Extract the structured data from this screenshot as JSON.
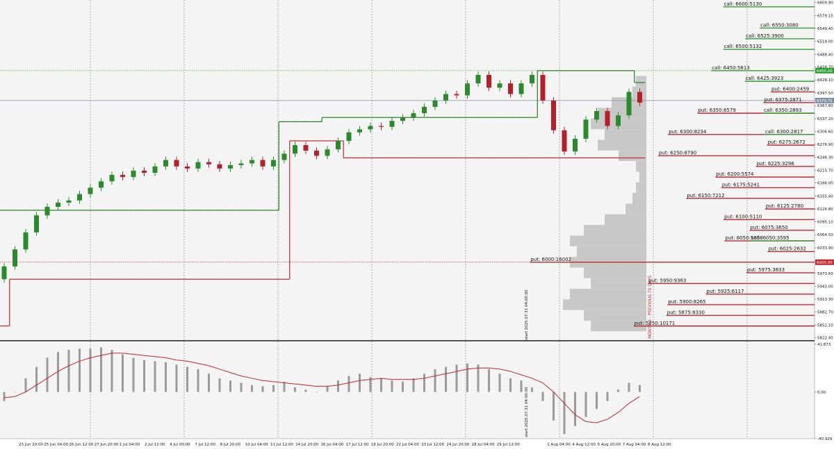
{
  "chart_data": [
    {
      "type": "candlestick",
      "xlabels": [
        "23 Jun 20:00",
        "25 Jun 04:00",
        "26 Jun 12:00",
        "27 Jun 20:00",
        "1 Jul 04:00",
        "2 Jul 12:00",
        "4 Jul 00:00",
        "7 Jul 12:00",
        "8 Jul 20:00",
        "10 Jul 04:00",
        "11 Jul 12:00",
        "14 Jul 20:00",
        "16 Jul 04:00",
        "17 Jul 12:00",
        "18 Jul 20:00",
        "22 Jul 04:00",
        "23 Jul 12:00",
        "24 Jul 20:00",
        "28 Jul 04:00",
        "29 Jul 12:00",
        null,
        "1 Aug 04:00",
        "4 Aug 12:00",
        "5 Aug 20:00",
        "7 Aug 04:00",
        "8 Aug 12:00"
      ],
      "candles": {
        "open": [
          5960,
          5990,
          6030,
          6070,
          6110,
          6130,
          6140,
          6145,
          6160,
          6175,
          6190,
          6205,
          6200,
          6215,
          6210,
          6225,
          6240,
          6225,
          6220,
          6235,
          6230,
          6220,
          6228,
          6232,
          6240,
          6225,
          6240,
          6255,
          6275,
          6262,
          6250,
          6265,
          6285,
          6305,
          6312,
          6320,
          6318,
          6332,
          6340,
          6350,
          6365,
          6380,
          6395,
          6392,
          6420,
          6440,
          6410,
          6420,
          6395,
          6420,
          6440,
          6380,
          6310,
          6260,
          6290,
          6335,
          6355,
          6320,
          6345,
          6400
        ],
        "high": [
          5998,
          6038,
          6078,
          6118,
          6138,
          6148,
          6153,
          6168,
          6183,
          6198,
          6213,
          6213,
          6223,
          6223,
          6233,
          6248,
          6248,
          6233,
          6243,
          6243,
          6238,
          6236,
          6240,
          6248,
          6248,
          6248,
          6263,
          6283,
          6283,
          6270,
          6273,
          6293,
          6313,
          6320,
          6328,
          6328,
          6340,
          6348,
          6358,
          6373,
          6388,
          6403,
          6403,
          6428,
          6448,
          6448,
          6428,
          6428,
          6428,
          6448,
          6448,
          6388,
          6318,
          6298,
          6343,
          6363,
          6363,
          6353,
          6408,
          6408
        ],
        "low": [
          5952,
          5982,
          6022,
          6062,
          6102,
          6122,
          6132,
          6137,
          6152,
          6167,
          6182,
          6192,
          6192,
          6202,
          6202,
          6217,
          6217,
          6212,
          6212,
          6222,
          6212,
          6212,
          6220,
          6224,
          6217,
          6217,
          6232,
          6247,
          6254,
          6242,
          6242,
          6257,
          6277,
          6297,
          6304,
          6310,
          6310,
          6324,
          6332,
          6342,
          6357,
          6372,
          6384,
          6384,
          6412,
          6402,
          6402,
          6387,
          6387,
          6412,
          6372,
          6302,
          6252,
          6252,
          6282,
          6327,
          6312,
          6312,
          6337,
          6367
        ],
        "close": [
          5990,
          6030,
          6070,
          6110,
          6130,
          6140,
          6145,
          6160,
          6175,
          6190,
          6205,
          6200,
          6215,
          6210,
          6225,
          6240,
          6225,
          6220,
          6235,
          6230,
          6220,
          6228,
          6232,
          6240,
          6225,
          6240,
          6255,
          6275,
          6262,
          6250,
          6265,
          6285,
          6305,
          6312,
          6320,
          6318,
          6332,
          6340,
          6350,
          6365,
          6380,
          6395,
          6392,
          6420,
          6440,
          6410,
          6420,
          6395,
          6420,
          6440,
          6380,
          6310,
          6260,
          6290,
          6335,
          6355,
          6320,
          6345,
          6400,
          6375
        ]
      },
      "up_color": "#2b8a2b",
      "down_color": "#b3202a",
      "ylim": [
        5817,
        6616
      ],
      "yticks": [
        {
          "value": 6609.9,
          "label": "6609.90"
        },
        {
          "value": 6579.15,
          "label": "6579.15"
        },
        {
          "value": 6549.4,
          "label": "6549.40"
        },
        {
          "value": 6519,
          "label": "6519.00"
        },
        {
          "value": 6488.4,
          "label": "6488.40"
        },
        {
          "value": 6458.7,
          "label": "6458.70"
        },
        {
          "value": 6428.1,
          "label": "6428.10"
        },
        {
          "value": 6397.5,
          "label": "6397.50"
        },
        {
          "value": 6367.8,
          "label": "6367.80"
        },
        {
          "value": 6337.2,
          "label": "6337.20"
        },
        {
          "value": 6306.6,
          "label": "6306.60"
        },
        {
          "value": 6276.9,
          "label": "6276.90"
        },
        {
          "value": 6246.3,
          "label": "6246.30"
        },
        {
          "value": 6215.7,
          "label": "6215.70"
        },
        {
          "value": 6186,
          "label": "6186.00"
        },
        {
          "value": 6155.4,
          "label": "6155.40"
        },
        {
          "value": 6124.8,
          "label": "6124.80"
        },
        {
          "value": 6095.1,
          "label": "6095.10"
        },
        {
          "value": 6064.5,
          "label": "6064.50"
        },
        {
          "value": 6033.9,
          "label": "6033.90"
        },
        {
          "value": 5973.6,
          "label": "5973.60"
        },
        {
          "value": 5943,
          "label": "5943.00"
        },
        {
          "value": 5913.3,
          "label": "5913.30"
        },
        {
          "value": 5882.7,
          "label": "5882.70"
        },
        {
          "value": 5852.1,
          "label": "5852.10"
        },
        {
          "value": 5822.4,
          "label": "5822.40"
        }
      ],
      "resistance": {
        "color": "#1f7a1f",
        "values": [
          6122,
          6122,
          6122,
          6122,
          6122,
          6122,
          6122,
          6122,
          6122,
          6122,
          6122,
          6122,
          6122,
          6122,
          6122,
          6122,
          6122,
          6122,
          6122,
          6122,
          6122,
          6122,
          6122,
          6122,
          6122,
          6122,
          6330,
          6330,
          6330,
          6330,
          6340,
          6340,
          6340,
          6340,
          6340,
          6340,
          6340,
          6340,
          6340,
          6340,
          6340,
          6340,
          6340,
          6340,
          6340,
          6340,
          6340,
          6340,
          6340,
          6340,
          6450,
          6450,
          6450,
          6450,
          6450,
          6450,
          6450,
          6450,
          6450,
          6422
        ]
      },
      "support": {
        "color": "#c0272d",
        "values": [
          5850,
          5960,
          5960,
          5960,
          5960,
          5960,
          5960,
          5960,
          5960,
          5960,
          5960,
          5960,
          5960,
          5960,
          5960,
          5960,
          5960,
          5960,
          5960,
          5960,
          5960,
          5960,
          5960,
          5960,
          5960,
          5960,
          5960,
          6285,
          6285,
          6285,
          6285,
          6285,
          6245,
          6245,
          6245,
          6245,
          6245,
          6245,
          6245,
          6245,
          6245,
          6245,
          6245,
          6245,
          6245,
          6245,
          6245,
          6245,
          6245,
          6245,
          6245,
          6245,
          6245,
          6245,
          6245,
          6245,
          6245,
          6245,
          6245,
          6245
        ]
      },
      "marked_levels": [
        {
          "value": 6450,
          "label": "6450.00",
          "color": "#2e9c2e"
        },
        {
          "value": 6000,
          "label": "6000.00",
          "color": "#c0272d"
        },
        {
          "value": 6379.75,
          "label": "6379.75",
          "color": "#7f8fa6"
        }
      ],
      "volume_profile": {
        "color": "#c8c8c8",
        "prices": [
          5850,
          5875,
          5900,
          5925,
          5950,
          5975,
          6000,
          6025,
          6050,
          6075,
          6100,
          6125,
          6150,
          6175,
          6200,
          6225,
          6250,
          6275,
          6300,
          6325,
          6350,
          6375,
          6400,
          6425
        ],
        "values": [
          80,
          90,
          120,
          110,
          80,
          90,
          110,
          100,
          110,
          90,
          60,
          30,
          20,
          15,
          10,
          15,
          40,
          70,
          60,
          80,
          70,
          50,
          20,
          15
        ]
      },
      "options": {
        "puts": {
          "color": "#c0272d",
          "levels": [
            {
              "label": "put: 6400:2459",
              "price": 6400,
              "oi": 2459
            },
            {
              "label": "put: 6375:2871",
              "price": 6375,
              "oi": 2871
            },
            {
              "label": "put: 6350:6579",
              "price": 6350,
              "oi": 6579
            },
            {
              "label": "put: 6300:8234",
              "price": 6300,
              "oi": 8234
            },
            {
              "label": "put: 6275:2672",
              "price": 6275,
              "oi": 2672
            },
            {
              "label": "put: 6250:8790",
              "price": 6250,
              "oi": 8790
            },
            {
              "label": "put: 6225:3296",
              "price": 6225,
              "oi": 3296
            },
            {
              "label": "put: 6200:5574",
              "price": 6200,
              "oi": 5574
            },
            {
              "label": "put: 6175:5241",
              "price": 6175,
              "oi": 5241
            },
            {
              "label": "put: 6150:7212",
              "price": 6150,
              "oi": 7212
            },
            {
              "label": "put: 6125:2780",
              "price": 6125,
              "oi": 2780
            },
            {
              "label": "put: 6100:5110",
              "price": 6100,
              "oi": 5110
            },
            {
              "label": "put: 6075:3650",
              "price": 6075,
              "oi": 3650
            },
            {
              "label": "put: 6050:5058",
              "price": 6050,
              "oi": 5058
            },
            {
              "label": "put: 6025:2632",
              "price": 6025,
              "oi": 2632
            },
            {
              "label": "put: 6000:16002",
              "price": 6000,
              "oi": 16002
            },
            {
              "label": "put: 5975:3833",
              "price": 5975,
              "oi": 3833
            },
            {
              "label": "put: 5950:9363",
              "price": 5950,
              "oi": 9363
            },
            {
              "label": "put: 5925:6117",
              "price": 5925,
              "oi": 6117
            },
            {
              "label": "put: 5900:8265",
              "price": 5900,
              "oi": 8265
            },
            {
              "label": "put: 5875:8330",
              "price": 5875,
              "oi": 8330
            },
            {
              "label": "put: 5850:10171",
              "price": 5850,
              "oi": 10171
            }
          ]
        },
        "calls": {
          "color": "#2e9c2e",
          "levels": [
            {
              "label": "call: 6600:5130",
              "price": 6600,
              "oi": 5130
            },
            {
              "label": "call: 6550:3080",
              "price": 6550,
              "oi": 3080
            },
            {
              "label": "call: 6525:3900",
              "price": 6525,
              "oi": 3900
            },
            {
              "label": "call: 6500:5132",
              "price": 6500,
              "oi": 5132
            },
            {
              "label": "call: 6450:5813",
              "price": 6450,
              "oi": 5813
            },
            {
              "label": "call: 6425:3923",
              "price": 6425,
              "oi": 3923
            },
            {
              "label": "call: 6350:2893",
              "price": 6350,
              "oi": 2893
            },
            {
              "label": "call: 6300:2817",
              "price": 6300,
              "oi": 2817
            },
            {
              "label": "call: 6050:3595",
              "price": 6050,
              "oi": 3595
            }
          ]
        }
      },
      "start_marker": "start 2025.07.31 04:00:00",
      "profile_caption": "MONTA-3 - PREVIOUS 70 DAYS"
    },
    {
      "type": "macd",
      "ylim": [
        -40.929,
        41.873
      ],
      "yticks": [
        41.873,
        {
          "value": 0,
          "label": "0.00"
        },
        -40.929
      ],
      "histogram": {
        "color": "#9a9a9a",
        "values": [
          -8,
          0,
          12,
          22,
          30,
          35,
          37,
          38,
          38,
          39,
          37,
          33,
          30,
          28,
          27,
          26,
          24,
          22,
          20,
          16,
          12,
          10,
          8,
          6,
          5,
          6,
          9,
          4,
          2,
          0,
          5,
          10,
          14,
          16,
          13,
          12,
          10,
          9,
          12,
          16,
          20,
          22,
          24,
          25,
          24,
          20,
          16,
          12,
          10,
          4,
          -8,
          -25,
          -37,
          -30,
          -22,
          -15,
          -8,
          2,
          8,
          6
        ]
      },
      "signal": {
        "color": "#c0272d",
        "values": [
          -5,
          -4,
          0,
          6,
          12,
          18,
          23,
          27,
          30,
          32,
          34,
          34,
          33,
          32,
          31,
          30,
          28,
          27,
          25,
          23,
          20,
          17,
          14,
          12,
          10,
          9,
          8,
          7,
          6,
          5,
          5,
          6,
          8,
          10,
          11,
          12,
          11,
          11,
          11,
          12,
          14,
          16,
          18,
          20,
          21,
          21,
          20,
          18,
          15,
          12,
          8,
          0,
          -10,
          -20,
          -26,
          -27,
          -24,
          -18,
          -10,
          -4
        ]
      },
      "start_marker": "start 2025.07.31 04:00:00"
    }
  ]
}
